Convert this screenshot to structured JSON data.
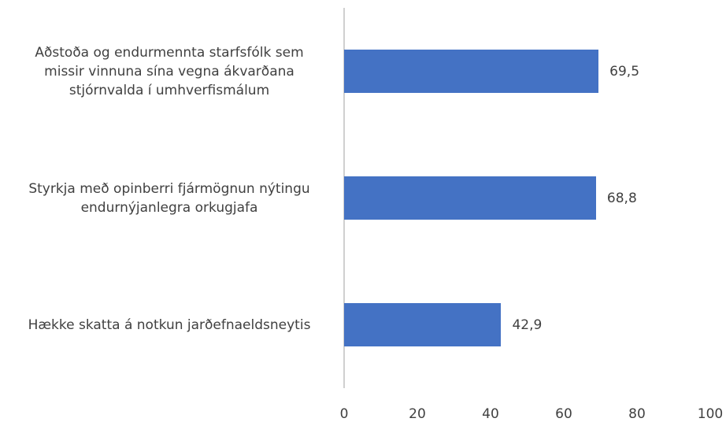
{
  "chart_data": {
    "type": "barh",
    "categories": [
      "Aðstoða og endurmennta starfsfólk sem\nmissir vinnuna sína vegna ákvarðana\nstjórnvalda í umhverfismálum",
      "Styrkja með opinberri fjármögnun nýtingu\nendurnýjanlegra orkugjafa",
      "Hække skatta á notkun jarðefnaeldsneytis"
    ],
    "values": [
      69.5,
      68.8,
      42.9
    ],
    "value_labels": [
      "69,5",
      "68,8",
      "42,9"
    ],
    "color": "#4472c4",
    "xlim": [
      0,
      100
    ],
    "xticks": [
      0,
      20,
      40,
      60,
      80,
      100
    ],
    "grid": false
  }
}
